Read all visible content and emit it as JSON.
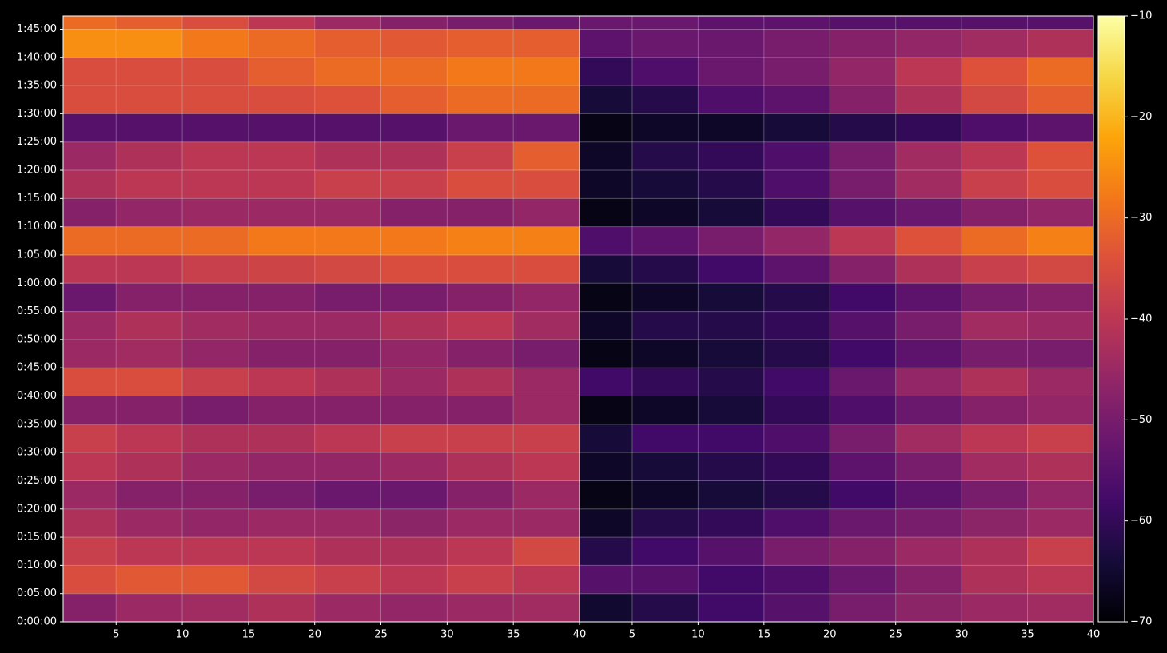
{
  "chart_data": {
    "type": "heatmap",
    "grid": true,
    "y": [
      150,
      450,
      750,
      1050,
      1350,
      1650,
      1950,
      2250,
      2550,
      2850,
      3150,
      3450,
      3750,
      4050,
      4350,
      4650,
      4950,
      5250,
      5550,
      5850,
      6150,
      6450
    ],
    "ylim": [
      0,
      6440
    ],
    "yticks": [
      {
        "value": 0,
        "label": "0:00:00"
      },
      {
        "value": 300,
        "label": "0:05:00"
      },
      {
        "value": 600,
        "label": "0:10:00"
      },
      {
        "value": 900,
        "label": "0:15:00"
      },
      {
        "value": 1200,
        "label": "0:20:00"
      },
      {
        "value": 1500,
        "label": "0:25:00"
      },
      {
        "value": 1800,
        "label": "0:30:00"
      },
      {
        "value": 2100,
        "label": "0:35:00"
      },
      {
        "value": 2400,
        "label": "0:40:00"
      },
      {
        "value": 2700,
        "label": "0:45:00"
      },
      {
        "value": 3000,
        "label": "0:50:00"
      },
      {
        "value": 3300,
        "label": "0:55:00"
      },
      {
        "value": 3600,
        "label": "1:00:00"
      },
      {
        "value": 3900,
        "label": "1:05:00"
      },
      {
        "value": 4200,
        "label": "1:10:00"
      },
      {
        "value": 4500,
        "label": "1:15:00"
      },
      {
        "value": 4800,
        "label": "1:20:00"
      },
      {
        "value": 5100,
        "label": "1:25:00"
      },
      {
        "value": 5400,
        "label": "1:30:00"
      },
      {
        "value": 5700,
        "label": "1:35:00"
      },
      {
        "value": 6000,
        "label": "1:40:00"
      },
      {
        "value": 6300,
        "label": "1:45:00"
      }
    ],
    "colorbar": {
      "lim": [
        -70,
        -10
      ],
      "ticks": [
        {
          "value": -10,
          "label": "−10"
        },
        {
          "value": -20,
          "label": "−20"
        },
        {
          "value": -30,
          "label": "−30"
        },
        {
          "value": -40,
          "label": "−40"
        },
        {
          "value": -50,
          "label": "−50"
        },
        {
          "value": -60,
          "label": "−60"
        },
        {
          "value": -70,
          "label": "−70"
        }
      ]
    },
    "panels": [
      {
        "x": [
          2.5,
          7.5,
          12.5,
          17.5,
          22.5,
          27.5,
          32.5,
          37.5
        ],
        "xlim": [
          1,
          40
        ],
        "xticks": [
          5,
          10,
          15,
          20,
          25,
          30,
          35,
          40
        ],
        "values": [
          [
            -48,
            -45,
            -44,
            -42,
            -45,
            -46,
            -45,
            -44
          ],
          [
            -35,
            -33,
            -33,
            -36,
            -38,
            -40,
            -38,
            -40
          ],
          [
            -38,
            -40,
            -40,
            -40,
            -42,
            -42,
            -40,
            -36
          ],
          [
            -42,
            -45,
            -46,
            -45,
            -45,
            -47,
            -45,
            -45
          ],
          [
            -45,
            -48,
            -48,
            -50,
            -52,
            -52,
            -48,
            -45
          ],
          [
            -40,
            -42,
            -45,
            -46,
            -46,
            -45,
            -42,
            -40
          ],
          [
            -38,
            -40,
            -42,
            -42,
            -40,
            -38,
            -38,
            -38
          ],
          [
            -48,
            -48,
            -50,
            -48,
            -48,
            -48,
            -48,
            -45
          ],
          [
            -35,
            -35,
            -38,
            -40,
            -42,
            -45,
            -42,
            -45
          ],
          [
            -45,
            -44,
            -46,
            -48,
            -48,
            -46,
            -48,
            -50
          ],
          [
            -45,
            -42,
            -44,
            -45,
            -45,
            -42,
            -40,
            -44
          ],
          [
            -52,
            -48,
            -48,
            -48,
            -50,
            -50,
            -48,
            -46
          ],
          [
            -40,
            -40,
            -38,
            -37,
            -36,
            -35,
            -35,
            -35
          ],
          [
            -30,
            -30,
            -30,
            -28,
            -28,
            -28,
            -27,
            -27
          ],
          [
            -48,
            -46,
            -45,
            -45,
            -45,
            -48,
            -48,
            -46
          ],
          [
            -42,
            -40,
            -40,
            -40,
            -38,
            -38,
            -35,
            -35
          ],
          [
            -45,
            -42,
            -40,
            -40,
            -42,
            -42,
            -38,
            -32
          ],
          [
            -55,
            -55,
            -55,
            -55,
            -55,
            -55,
            -52,
            -52
          ],
          [
            -35,
            -35,
            -35,
            -35,
            -34,
            -32,
            -30,
            -30
          ],
          [
            -35,
            -35,
            -35,
            -32,
            -30,
            -30,
            -28,
            -28
          ],
          [
            -25,
            -25,
            -28,
            -30,
            -32,
            -33,
            -32,
            -32
          ],
          [
            -30,
            -32,
            -35,
            -40,
            -45,
            -48,
            -50,
            -52
          ]
        ]
      },
      {
        "x": [
          2.5,
          7.5,
          12.5,
          17.5,
          22.5,
          27.5,
          32.5,
          37.5
        ],
        "xlim": [
          1,
          40
        ],
        "xticks": [
          5,
          10,
          15,
          20,
          25,
          30,
          35,
          40
        ],
        "values": [
          [
            -65,
            -62,
            -58,
            -55,
            -50,
            -47,
            -45,
            -44
          ],
          [
            -55,
            -55,
            -58,
            -56,
            -52,
            -48,
            -42,
            -40
          ],
          [
            -62,
            -58,
            -55,
            -50,
            -48,
            -45,
            -42,
            -38
          ],
          [
            -66,
            -62,
            -60,
            -56,
            -52,
            -50,
            -47,
            -45
          ],
          [
            -68,
            -66,
            -64,
            -62,
            -58,
            -54,
            -50,
            -46
          ],
          [
            -66,
            -64,
            -62,
            -60,
            -54,
            -50,
            -44,
            -42
          ],
          [
            -64,
            -58,
            -58,
            -56,
            -50,
            -44,
            -40,
            -38
          ],
          [
            -68,
            -66,
            -64,
            -60,
            -56,
            -52,
            -48,
            -46
          ],
          [
            -58,
            -60,
            -62,
            -58,
            -52,
            -46,
            -42,
            -45
          ],
          [
            -68,
            -66,
            -64,
            -62,
            -58,
            -54,
            -50,
            -50
          ],
          [
            -66,
            -62,
            -62,
            -60,
            -55,
            -50,
            -44,
            -45
          ],
          [
            -68,
            -66,
            -64,
            -62,
            -58,
            -54,
            -50,
            -48
          ],
          [
            -64,
            -62,
            -58,
            -54,
            -48,
            -42,
            -38,
            -36
          ],
          [
            -56,
            -54,
            -50,
            -46,
            -40,
            -34,
            -30,
            -27
          ],
          [
            -68,
            -66,
            -64,
            -60,
            -55,
            -52,
            -48,
            -46
          ],
          [
            -66,
            -64,
            -62,
            -56,
            -50,
            -44,
            -38,
            -35
          ],
          [
            -66,
            -62,
            -60,
            -56,
            -50,
            -44,
            -40,
            -34
          ],
          [
            -68,
            -66,
            -66,
            -64,
            -62,
            -60,
            -56,
            -54
          ],
          [
            -64,
            -62,
            -56,
            -54,
            -48,
            -42,
            -36,
            -32
          ],
          [
            -60,
            -56,
            -52,
            -50,
            -46,
            -40,
            -34,
            -30
          ],
          [
            -54,
            -52,
            -52,
            -50,
            -48,
            -46,
            -44,
            -42
          ],
          [
            -52,
            -52,
            -54,
            -54,
            -55,
            -55,
            -55,
            -55
          ]
        ]
      }
    ]
  }
}
